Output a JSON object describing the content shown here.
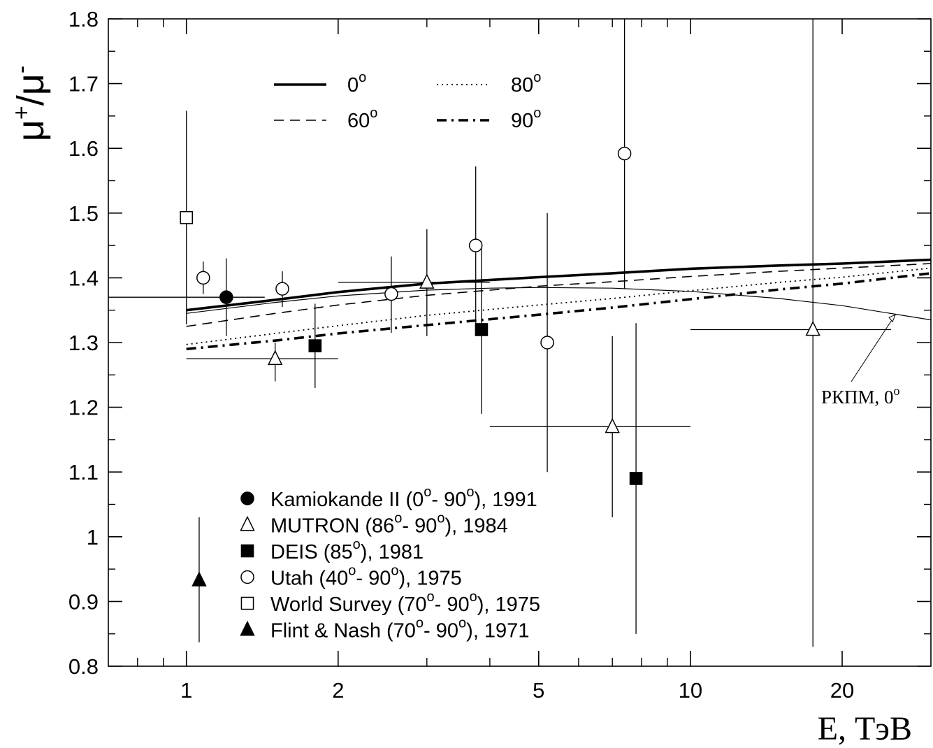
{
  "chart_data": {
    "type": "scatter",
    "title": "",
    "ylabel": {
      "base": "μ",
      "sup1": "+",
      "sep": "/",
      "base2": "μ",
      "sup2": "-"
    },
    "xlabel": "E, ТэВ",
    "x_scale": "log",
    "xlim": [
      0.7,
      30
    ],
    "ylim": [
      0.8,
      1.8
    ],
    "x_ticks": [
      {
        "value": 1,
        "label": "1"
      },
      {
        "value": 2,
        "label": "2"
      },
      {
        "value": 5,
        "label": "5"
      },
      {
        "value": 10,
        "label": "10"
      },
      {
        "value": 20,
        "label": "20"
      }
    ],
    "y_ticks": [
      {
        "value": 0.8,
        "label": "0.8"
      },
      {
        "value": 0.9,
        "label": "0.9"
      },
      {
        "value": 1.0,
        "label": "1"
      },
      {
        "value": 1.1,
        "label": "1.1"
      },
      {
        "value": 1.2,
        "label": "1.2"
      },
      {
        "value": 1.3,
        "label": "1.3"
      },
      {
        "value": 1.4,
        "label": "1.4"
      },
      {
        "value": 1.5,
        "label": "1.5"
      },
      {
        "value": 1.6,
        "label": "1.6"
      },
      {
        "value": 1.7,
        "label": "1.7"
      },
      {
        "value": 1.8,
        "label": "1.8"
      }
    ],
    "line_legend": [
      {
        "label": "0",
        "sup": "o",
        "style": "solid"
      },
      {
        "label": "60",
        "sup": "o",
        "style": "dashed"
      },
      {
        "label": "80",
        "sup": "o",
        "style": "dotted"
      },
      {
        "label": "90",
        "sup": "o",
        "style": "dashdot"
      }
    ],
    "curves": [
      {
        "style": "solid",
        "x": [
          1,
          1.5,
          2,
          3,
          5,
          7,
          10,
          15,
          20,
          30
        ],
        "y": [
          1.35,
          1.366,
          1.378,
          1.391,
          1.401,
          1.407,
          1.414,
          1.419,
          1.422,
          1.428
        ]
      },
      {
        "style": "dashed",
        "x": [
          1,
          1.5,
          2,
          3,
          5,
          7,
          10,
          15,
          20,
          30
        ],
        "y": [
          1.325,
          1.345,
          1.358,
          1.373,
          1.387,
          1.394,
          1.402,
          1.41,
          1.415,
          1.422
        ]
      },
      {
        "style": "dotted",
        "x": [
          1,
          1.5,
          2,
          3,
          5,
          7,
          10,
          15,
          20,
          30
        ],
        "y": [
          1.297,
          1.314,
          1.326,
          1.342,
          1.358,
          1.368,
          1.38,
          1.393,
          1.401,
          1.415
        ]
      },
      {
        "style": "dashdot",
        "x": [
          1,
          1.5,
          2,
          3,
          5,
          7,
          10,
          15,
          20,
          30
        ],
        "y": [
          1.29,
          1.303,
          1.314,
          1.327,
          1.343,
          1.354,
          1.367,
          1.382,
          1.391,
          1.407
        ]
      },
      {
        "style": "thin",
        "x": [
          1,
          1.5,
          2,
          3,
          4,
          5,
          7,
          10,
          15,
          20,
          30
        ],
        "y": [
          1.345,
          1.362,
          1.372,
          1.381,
          1.384,
          1.385,
          1.384,
          1.379,
          1.368,
          1.357,
          1.335
        ]
      }
    ],
    "annotation": {
      "text": "РКПМ, 0",
      "sup": "o",
      "arrow_to_x": 25.5,
      "arrow_to_y": 1.343
    },
    "series": [
      {
        "name": "Kamiokande II (0",
        "sup1": "o",
        "mid": "- 90",
        "sup2": "o",
        "tail": "), 1991",
        "marker": "filled-circle",
        "points": [
          {
            "x": 1.2,
            "y": 1.37,
            "yerr": [
              1.31,
              1.43
            ],
            "xerr": [
              0.7,
              1.43
            ]
          }
        ]
      },
      {
        "name": "MUTRON (86",
        "sup1": "o",
        "mid": "- 90",
        "sup2": "o",
        "tail": "), 1984",
        "marker": "open-triangle",
        "points": [
          {
            "x": 1.5,
            "y": 1.275,
            "yerr": [
              1.24,
              1.3
            ],
            "xerr": [
              1.0,
              2.0
            ]
          },
          {
            "x": 3.0,
            "y": 1.393,
            "yerr": [
              1.31,
              1.475
            ],
            "xerr": [
              2.0,
              4.0
            ]
          },
          {
            "x": 7.0,
            "y": 1.17,
            "yerr": [
              1.03,
              1.31
            ],
            "xerr": [
              4.0,
              10.0
            ]
          },
          {
            "x": 17.5,
            "y": 1.32,
            "yerr": [
              0.83,
              1.8
            ],
            "xerr": [
              10.0,
              25.0
            ]
          }
        ]
      },
      {
        "name": "DEIS (85",
        "sup1": "o",
        "mid": "",
        "sup2": "",
        "tail": "), 1981",
        "marker": "filled-square",
        "points": [
          {
            "x": 1.8,
            "y": 1.295,
            "yerr": [
              1.23,
              1.36
            ]
          },
          {
            "x": 3.85,
            "y": 1.32,
            "yerr": [
              1.19,
              1.45
            ]
          },
          {
            "x": 7.8,
            "y": 1.09,
            "yerr": [
              0.85,
              1.33
            ]
          }
        ]
      },
      {
        "name": "Utah (40",
        "sup1": "o",
        "mid": "- 90",
        "sup2": "o",
        "tail": "), 1975",
        "marker": "open-circle",
        "points": [
          {
            "x": 1.08,
            "y": 1.4,
            "yerr": [
              1.375,
              1.425
            ]
          },
          {
            "x": 1.55,
            "y": 1.383,
            "yerr": [
              1.355,
              1.41
            ]
          },
          {
            "x": 2.55,
            "y": 1.375,
            "yerr": [
              1.315,
              1.433
            ]
          },
          {
            "x": 3.75,
            "y": 1.45,
            "yerr": [
              1.328,
              1.572
            ]
          },
          {
            "x": 5.2,
            "y": 1.3,
            "yerr": [
              1.1,
              1.5
            ]
          },
          {
            "x": 7.4,
            "y": 1.592,
            "yerr": [
              1.383,
              1.8
            ]
          }
        ]
      },
      {
        "name": "World Survey (70",
        "sup1": "o",
        "mid": "- 90",
        "sup2": "o",
        "tail": "), 1975",
        "marker": "open-square",
        "points": [
          {
            "x": 1.0,
            "y": 1.493,
            "yerr": [
              1.328,
              1.658
            ]
          }
        ]
      },
      {
        "name": "Flint & Nash (70",
        "sup1": "o",
        "mid": "- 90",
        "sup2": "o",
        "tail": "), 1971",
        "marker": "filled-triangle",
        "points": [
          {
            "x": 1.06,
            "y": 0.933,
            "yerr": [
              0.837,
              1.03
            ]
          }
        ]
      }
    ]
  }
}
